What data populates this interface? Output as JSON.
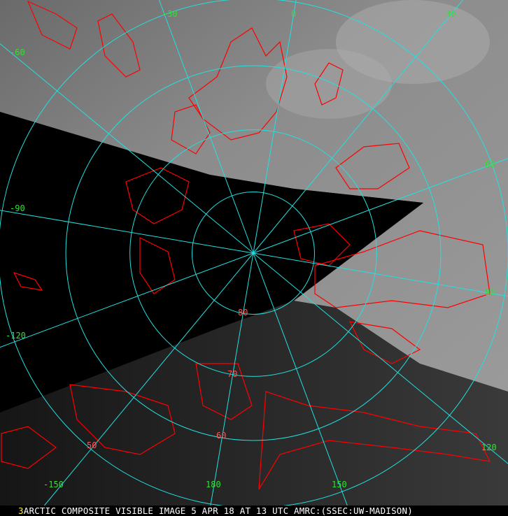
{
  "caption": {
    "frame_number": "3",
    "text": "ARCTIC COMPOSITE VISIBLE IMAGE 5 APR 18 AT 13 UTC AMRC:(SSEC:UW-MADISON)"
  },
  "map": {
    "projection": "polar stereographic (north pole)",
    "grid_color": "#22e0e0",
    "coastline_color": "#ff0000",
    "label_color": "#33e033",
    "latitude_circles": [
      80,
      70,
      60,
      50
    ],
    "meridians": [
      0,
      30,
      60,
      90,
      120,
      150,
      180,
      -150,
      -120,
      -90,
      -60,
      -30
    ],
    "longitude_labels": [
      "-30",
      "0",
      "30",
      "-60",
      "-90",
      "60",
      "90",
      "-120",
      "120",
      "-150",
      "180",
      "150"
    ],
    "latitude_labels": [
      "80",
      "70",
      "60",
      "50"
    ]
  }
}
